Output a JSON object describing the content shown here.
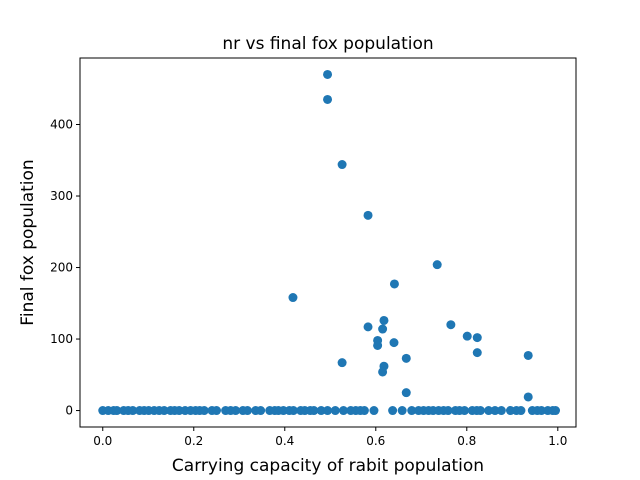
{
  "chart_data": {
    "type": "scatter",
    "title": "nr vs final fox population",
    "xlabel": "Carrying capacity of rabit population",
    "ylabel": "Final fox population",
    "xlim": [
      -0.05,
      1.04
    ],
    "ylim": [
      -23,
      493
    ],
    "xticks": [
      0.0,
      0.2,
      0.4,
      0.6,
      0.8,
      1.0
    ],
    "xtick_labels": [
      "0.0",
      "0.2",
      "0.4",
      "0.6",
      "0.8",
      "1.0"
    ],
    "yticks": [
      0,
      100,
      200,
      300,
      400
    ],
    "ytick_labels": [
      "0",
      "100",
      "200",
      "300",
      "400"
    ],
    "grid": false,
    "legend": "none",
    "marker_color": "#1f77b4",
    "points": [
      [
        0.0,
        0
      ],
      [
        0.012,
        0
      ],
      [
        0.024,
        0
      ],
      [
        0.031,
        0
      ],
      [
        0.046,
        0
      ],
      [
        0.056,
        0
      ],
      [
        0.066,
        0
      ],
      [
        0.081,
        0
      ],
      [
        0.091,
        0
      ],
      [
        0.101,
        0
      ],
      [
        0.113,
        0
      ],
      [
        0.124,
        0
      ],
      [
        0.135,
        0
      ],
      [
        0.149,
        0
      ],
      [
        0.158,
        0
      ],
      [
        0.168,
        0
      ],
      [
        0.181,
        0
      ],
      [
        0.193,
        0
      ],
      [
        0.204,
        0
      ],
      [
        0.213,
        0
      ],
      [
        0.223,
        0
      ],
      [
        0.24,
        0
      ],
      [
        0.25,
        0
      ],
      [
        0.27,
        0
      ],
      [
        0.281,
        0
      ],
      [
        0.292,
        0
      ],
      [
        0.308,
        0
      ],
      [
        0.318,
        0
      ],
      [
        0.336,
        0
      ],
      [
        0.347,
        0
      ],
      [
        0.367,
        0
      ],
      [
        0.378,
        0
      ],
      [
        0.386,
        0
      ],
      [
        0.397,
        0
      ],
      [
        0.41,
        0
      ],
      [
        0.419,
        0
      ],
      [
        0.435,
        0
      ],
      [
        0.444,
        0
      ],
      [
        0.456,
        0
      ],
      [
        0.464,
        0
      ],
      [
        0.48,
        0
      ],
      [
        0.494,
        0
      ],
      [
        0.511,
        0
      ],
      [
        0.529,
        0
      ],
      [
        0.545,
        0
      ],
      [
        0.556,
        0
      ],
      [
        0.566,
        0
      ],
      [
        0.575,
        0
      ],
      [
        0.596,
        0
      ],
      [
        0.637,
        0
      ],
      [
        0.658,
        0
      ],
      [
        0.679,
        0
      ],
      [
        0.694,
        0
      ],
      [
        0.705,
        0
      ],
      [
        0.716,
        0
      ],
      [
        0.726,
        0
      ],
      [
        0.738,
        0
      ],
      [
        0.749,
        0
      ],
      [
        0.759,
        0
      ],
      [
        0.775,
        0
      ],
      [
        0.784,
        0
      ],
      [
        0.795,
        0
      ],
      [
        0.812,
        0
      ],
      [
        0.822,
        0
      ],
      [
        0.83,
        0
      ],
      [
        0.848,
        0
      ],
      [
        0.862,
        0
      ],
      [
        0.876,
        0
      ],
      [
        0.896,
        0
      ],
      [
        0.909,
        0
      ],
      [
        0.919,
        0
      ],
      [
        0.944,
        0
      ],
      [
        0.955,
        0
      ],
      [
        0.964,
        0
      ],
      [
        0.978,
        0
      ],
      [
        0.989,
        0
      ],
      [
        0.995,
        0
      ],
      [
        0.494,
        470
      ],
      [
        0.494,
        435
      ],
      [
        0.526,
        344
      ],
      [
        0.583,
        273
      ],
      [
        0.418,
        158
      ],
      [
        0.526,
        67
      ],
      [
        0.735,
        204
      ],
      [
        0.641,
        177
      ],
      [
        0.618,
        126
      ],
      [
        0.583,
        117
      ],
      [
        0.615,
        114
      ],
      [
        0.604,
        98
      ],
      [
        0.604,
        91
      ],
      [
        0.64,
        95
      ],
      [
        0.618,
        62
      ],
      [
        0.615,
        54
      ],
      [
        0.667,
        73
      ],
      [
        0.667,
        25
      ],
      [
        0.765,
        120
      ],
      [
        0.801,
        104
      ],
      [
        0.823,
        102
      ],
      [
        0.823,
        81
      ],
      [
        0.935,
        77
      ],
      [
        0.935,
        19
      ]
    ]
  }
}
